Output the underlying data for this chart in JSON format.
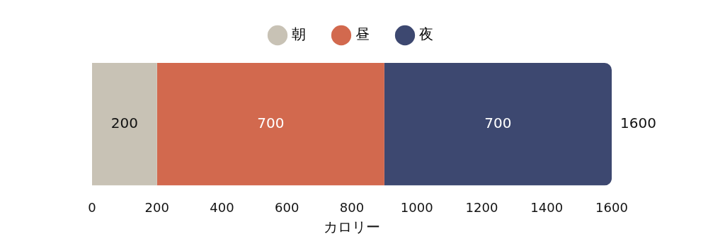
{
  "chart_data": {
    "type": "bar",
    "orientation": "horizontal",
    "stacked": true,
    "categories": [
      null
    ],
    "series": [
      {
        "name": "朝",
        "color": "#c8c2b5",
        "values": [
          200
        ]
      },
      {
        "name": "昼",
        "color": "#d2694e",
        "values": [
          700
        ]
      },
      {
        "name": "夜",
        "color": "#3d4870",
        "values": [
          700
        ]
      }
    ],
    "xlim": [
      0,
      1600
    ],
    "xticks": [
      0,
      200,
      400,
      600,
      800,
      1000,
      1200,
      1400,
      1600
    ],
    "xlabel": "カロリー",
    "legend": "top",
    "marker": "circle",
    "grid": false,
    "tick_labels": "x",
    "data_labels": true,
    "totals": [
      "1600"
    ]
  }
}
